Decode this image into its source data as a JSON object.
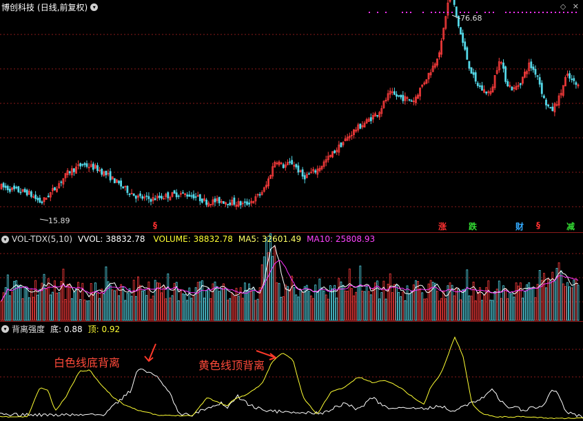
{
  "main_header": {
    "title": "博创科技",
    "mode": "(日线,前复权)",
    "high_label": "76.68",
    "low_label": "15.89",
    "corner_icons": [
      "diamond-icon",
      "close-icon"
    ],
    "markers": [
      {
        "text": "§",
        "color": "#ff3030"
      },
      {
        "text": "涨",
        "color": "#ff3030"
      },
      {
        "text": "跌",
        "color": "#33dd33"
      },
      {
        "text": "财",
        "color": "#33aaff"
      },
      {
        "text": "§",
        "color": "#ff3030"
      },
      {
        "text": "减",
        "color": "#33dd33"
      }
    ]
  },
  "vol_header": {
    "name": "VOL-TDX(5,10)",
    "vvol": "VVOL: 38832.78",
    "volume": "VOLUME: 38832.78",
    "ma5": "MA5: 32601.49",
    "ma10": "MA10: 25808.93"
  },
  "ind_header": {
    "name": "背离强度",
    "bottom": "底: 0.88",
    "top": "顶: 0.92",
    "annotation_white": "白色线底背离",
    "annotation_yellow": "黄色线顶背离"
  },
  "colors": {
    "up": "#ff3d3d",
    "down": "#54d8e8",
    "ma5": "#ffffff",
    "ma10": "#ff33ff",
    "yellow_line": "#ffff33",
    "white_line": "#ffffff",
    "grid": "#8b1a1a",
    "magenta_dots": "#ff33ff"
  },
  "chart_data": [
    {
      "type": "candlestick",
      "title": "博创科技 (日线,前复权)",
      "ylim": [
        10,
        80
      ],
      "annotated_high": 76.68,
      "annotated_low": 15.89,
      "close_anchors": [
        [
          0,
          21.5
        ],
        [
          20,
          20.5
        ],
        [
          40,
          19.8
        ],
        [
          60,
          17.0
        ],
        [
          80,
          21.0
        ],
        [
          100,
          25.5
        ],
        [
          120,
          27.5
        ],
        [
          140,
          26.5
        ],
        [
          160,
          24.0
        ],
        [
          180,
          21.0
        ],
        [
          200,
          18.5
        ],
        [
          220,
          18.0
        ],
        [
          240,
          18.8
        ],
        [
          260,
          19.5
        ],
        [
          280,
          19.0
        ],
        [
          300,
          17.2
        ],
        [
          320,
          17.5
        ],
        [
          340,
          17.0
        ],
        [
          355,
          16.5
        ],
        [
          370,
          18.0
        ],
        [
          385,
          21.0
        ],
        [
          400,
          29.0
        ],
        [
          410,
          27.0
        ],
        [
          425,
          28.0
        ],
        [
          440,
          24.0
        ],
        [
          460,
          26.0
        ],
        [
          480,
          30.0
        ],
        [
          500,
          34.0
        ],
        [
          515,
          37.0
        ],
        [
          530,
          39.0
        ],
        [
          550,
          42.0
        ],
        [
          565,
          47.0
        ],
        [
          580,
          46.0
        ],
        [
          600,
          45.0
        ],
        [
          615,
          50.0
        ],
        [
          630,
          55.0
        ],
        [
          640,
          60.0
        ],
        [
          648,
          70.0
        ],
        [
          655,
          76.0
        ],
        [
          660,
          70.0
        ],
        [
          670,
          62.0
        ],
        [
          680,
          55.0
        ],
        [
          690,
          50.0
        ],
        [
          700,
          48.0
        ],
        [
          712,
          47.0
        ],
        [
          725,
          57.0
        ],
        [
          735,
          50.0
        ],
        [
          745,
          48.0
        ],
        [
          755,
          50.0
        ],
        [
          768,
          55.0
        ],
        [
          780,
          52.0
        ],
        [
          790,
          45.0
        ],
        [
          800,
          42.0
        ],
        [
          812,
          46.0
        ],
        [
          822,
          52.0
        ],
        [
          838,
          49.0
        ]
      ]
    },
    {
      "type": "bar",
      "title": "VOL-TDX(5,10)",
      "series": [
        {
          "name": "VOLUME",
          "last_value": 38832.78
        },
        {
          "name": "MA5",
          "last_value": 32601.49
        },
        {
          "name": "MA10",
          "last_value": 25808.93
        }
      ]
    },
    {
      "type": "line",
      "title": "背离强度",
      "series": [
        {
          "name": "底",
          "value": 0.88
        },
        {
          "name": "顶",
          "value": 0.92
        }
      ]
    }
  ]
}
